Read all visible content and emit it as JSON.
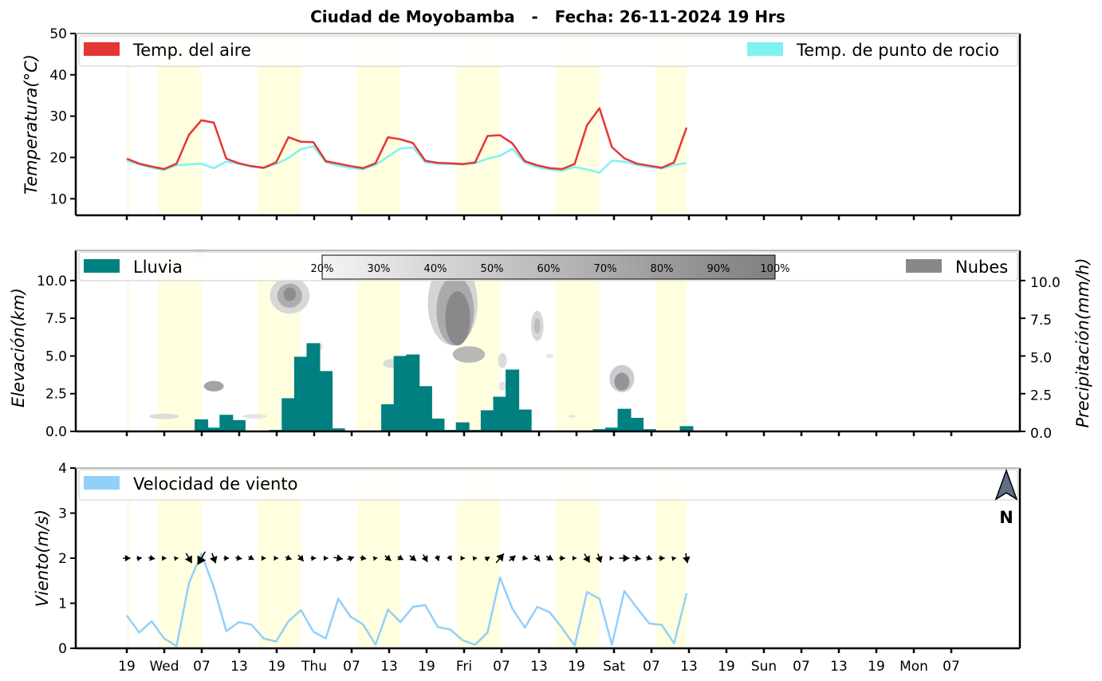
{
  "title": "Ciudad de Moyobamba   -   Fecha: 26-11-2024 19 Hrs",
  "x_tick_labels": [
    "19",
    "Wed",
    "07",
    "13",
    "19",
    "Thu",
    "07",
    "13",
    "19",
    "Fri",
    "07",
    "13",
    "19",
    "Sat",
    "07",
    "13",
    "19",
    "Sun",
    "07",
    "13",
    "19",
    "Mon",
    "07"
  ],
  "colors": {
    "temp_air": "#e53535",
    "dew_point": "#7ff2f2",
    "rain": "#008080",
    "clouds": "#888888",
    "wind": "#92d0fa",
    "day_band": "#ffffe0"
  },
  "compass_label": "N",
  "colorbar_labels": [
    "20%",
    "30%",
    "40%",
    "50%",
    "60%",
    "70%",
    "80%",
    "90%",
    "100%"
  ],
  "chart_data": [
    {
      "type": "line",
      "name": "temperature",
      "ylabel": "Temperatura(°C)",
      "ylim": [
        6,
        50
      ],
      "yticks": [
        10,
        20,
        30,
        40,
        50
      ],
      "x_start_hour": 19,
      "x_step_hours": 3,
      "series": [
        {
          "name": "Temp. del aire",
          "values": [
            19.7,
            18.5,
            17.8,
            17.2,
            18.5,
            25.5,
            29.0,
            28.4,
            19.7,
            18.6,
            17.9,
            17.5,
            18.8,
            24.9,
            23.8,
            23.7,
            19.1,
            18.5,
            17.9,
            17.4,
            18.6,
            24.9,
            24.4,
            23.5,
            19.2,
            18.7,
            18.6,
            18.4,
            18.8,
            25.2,
            25.4,
            23.4,
            19.1,
            18.1,
            17.4,
            17.2,
            18.4,
            27.8,
            31.9,
            22.5,
            19.8,
            18.5,
            18.0,
            17.5,
            18.8,
            27.2
          ]
        },
        {
          "name": "Temp. de punto de rocio",
          "values": [
            19.2,
            18.3,
            17.5,
            17.0,
            18.1,
            18.3,
            18.5,
            17.4,
            19.0,
            18.4,
            17.8,
            17.4,
            18.4,
            19.9,
            22.0,
            22.7,
            18.8,
            18.0,
            17.5,
            17.1,
            18.2,
            20.2,
            22.2,
            22.4,
            18.8,
            18.5,
            18.4,
            18.3,
            18.6,
            19.7,
            20.4,
            22.1,
            18.7,
            17.7,
            17.1,
            16.8,
            17.7,
            17.1,
            16.3,
            19.2,
            19.0,
            18.2,
            17.7,
            17.3,
            18.2,
            18.6
          ]
        }
      ]
    },
    {
      "type": "bar",
      "name": "precipitation",
      "ylabel_left": "Elevación(km)",
      "ylabel_right": "Precipitación(mm/h)",
      "ylim": [
        0,
        12
      ],
      "yticks": [
        0.0,
        2.5,
        5.0,
        7.5,
        10.0
      ],
      "series": [
        {
          "name": "Lluvia",
          "values": [
            0,
            0.05,
            0,
            0,
            0,
            0,
            0.8,
            0.25,
            1.1,
            0.75,
            0,
            0.05,
            0.1,
            2.2,
            4.95,
            5.85,
            4.0,
            0.2,
            0,
            0,
            0.05,
            1.8,
            5.0,
            5.1,
            3.0,
            0.85,
            0.1,
            0.6,
            0.1,
            1.4,
            2.3,
            4.1,
            1.45,
            0,
            0,
            0,
            0,
            0.05,
            0.15,
            0.25,
            1.5,
            0.9,
            0.15,
            0,
            0,
            0.35
          ]
        },
        {
          "name": "Nubes",
          "note": "cloud cover contours"
        }
      ]
    },
    {
      "type": "line",
      "name": "wind",
      "ylabel": "Viento(m/s)",
      "ylim": [
        0,
        4
      ],
      "yticks": [
        0,
        1,
        2,
        3,
        4
      ],
      "series": [
        {
          "name": "Velocidad de viento",
          "values": [
            0.73,
            0.35,
            0.6,
            0.22,
            0.05,
            1.45,
            2.1,
            1.35,
            0.38,
            0.58,
            0.53,
            0.22,
            0.15,
            0.6,
            0.85,
            0.37,
            0.22,
            1.1,
            0.7,
            0.53,
            0.08,
            0.86,
            0.58,
            0.92,
            0.96,
            0.47,
            0.42,
            0.18,
            0.08,
            0.35,
            1.57,
            0.88,
            0.46,
            0.92,
            0.8,
            0.45,
            0.06,
            1.25,
            1.1,
            0.08,
            1.27,
            0.9,
            0.55,
            0.52,
            0.11,
            1.22
          ]
        }
      ],
      "arrow_directions_deg": [
        90,
        80,
        100,
        90,
        80,
        150,
        210,
        160,
        90,
        100,
        120,
        90,
        90,
        110,
        140,
        90,
        90,
        100,
        70,
        100,
        80,
        130,
        120,
        130,
        150,
        160,
        150,
        90,
        80,
        60,
        40,
        50,
        100,
        140,
        120,
        90,
        90,
        150,
        160,
        90,
        90,
        100,
        110,
        90,
        80,
        170
      ]
    }
  ]
}
